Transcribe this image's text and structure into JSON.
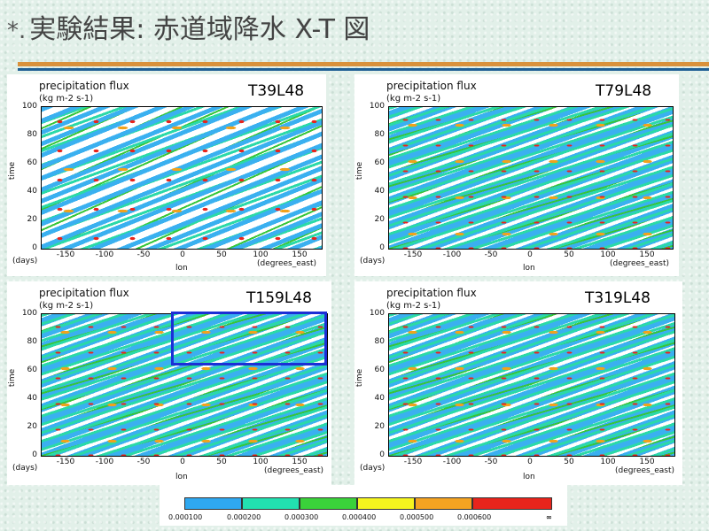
{
  "slide": {
    "title_bullet": "*.",
    "title_text": "実験結果: 赤道域降水 X-T 図"
  },
  "panels": [
    {
      "id": "t39",
      "title": "precipitation flux",
      "unit": "(kg m-2 s-1)",
      "resolution": "T39L48"
    },
    {
      "id": "t79",
      "title": "precipitation flux",
      "unit": "(kg m-2 s-1)",
      "resolution": "T79L48"
    },
    {
      "id": "t159",
      "title": "precipitation flux",
      "unit": "(kg m-2 s-1)",
      "resolution": "T159L48"
    },
    {
      "id": "t319",
      "title": "precipitation flux",
      "unit": "(kg m-2 s-1)",
      "resolution": "T319L48"
    }
  ],
  "axes": {
    "y_label": "time",
    "y_unit": "(days)",
    "y_ticks": [
      "100",
      "80",
      "60",
      "40",
      "20",
      "0"
    ],
    "x_label": "lon",
    "x_unit": "(degrees_east)",
    "x_ticks": [
      "-150",
      "-100",
      "-50",
      "0",
      "50",
      "100",
      "150"
    ]
  },
  "colorbar": {
    "labels": [
      "0.000100",
      "0.000200",
      "0.000300",
      "0.000400",
      "0.000500",
      "0.000600",
      "∞"
    ],
    "colors": [
      "#2fa8f0",
      "#22e0b0",
      "#3ad23a",
      "#f5f51e",
      "#f4a321",
      "#e8241c"
    ]
  }
}
